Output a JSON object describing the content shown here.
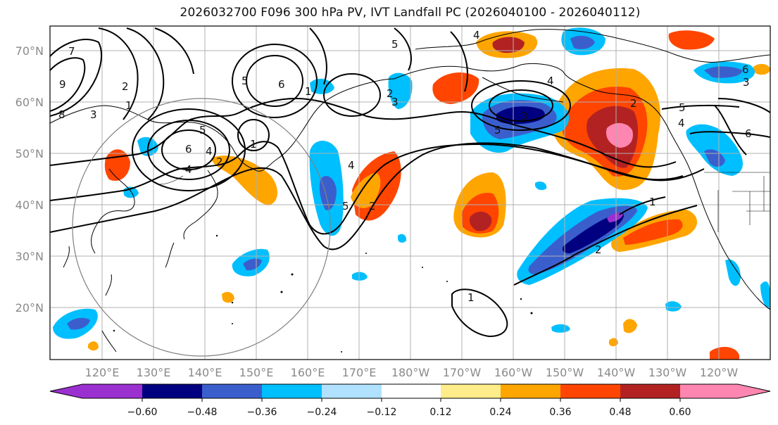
{
  "title": "2026032700 F096 300 hPa PV, IVT Landfall PC (2026040100 - 2026040112)",
  "lat_labels": [
    "70°N",
    "60°N",
    "50°N",
    "40°N",
    "30°N",
    "20°N"
  ],
  "lon_labels": [
    "120°E",
    "130°E",
    "140°E",
    "150°E",
    "160°E",
    "170°E",
    "180°W",
    "170°W",
    "160°W",
    "150°W",
    "140°W",
    "130°W",
    "120°W"
  ],
  "colorbar": {
    "ticks": [
      "−0.60",
      "−0.48",
      "−0.36",
      "−0.24",
      "−0.12",
      "0.12",
      "0.24",
      "0.36",
      "0.48",
      "0.60"
    ],
    "colors": [
      "#9b30d0",
      "#000080",
      "#3a5fcd",
      "#00bfff",
      "#b0e2ff",
      "#ffffff",
      "#ffec8b",
      "#ffa500",
      "#ff4500",
      "#b22222",
      "#ff86b0"
    ]
  },
  "contour_labels": [
    "7",
    "9",
    "8",
    "3",
    "2",
    "1",
    "4",
    "5",
    "6",
    "4",
    "2",
    "1",
    "5",
    "6",
    "1",
    "2",
    "4",
    "5",
    "2",
    "3",
    "4",
    "5",
    "3",
    "5",
    "4",
    "6",
    "1",
    "2",
    "1",
    "3",
    "2",
    "5",
    "6",
    "4"
  ]
}
